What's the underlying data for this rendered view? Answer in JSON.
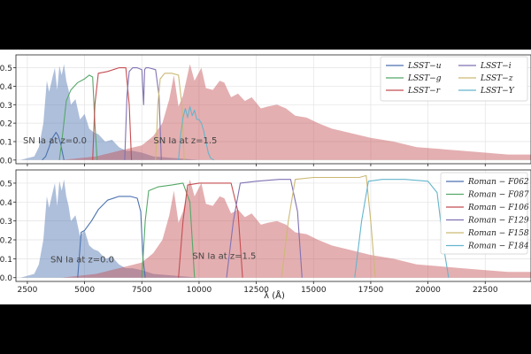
{
  "chart_data": [
    {
      "type": "area",
      "panel": "top",
      "xlim": [
        2000,
        24500
      ],
      "ylim": [
        -0.02,
        0.57
      ],
      "xticks": [
        2500,
        5000,
        7500,
        10000,
        12500,
        15000,
        17500,
        20000,
        22500
      ],
      "yticks": [
        0.0,
        0.1,
        0.2,
        0.3,
        0.4,
        0.5
      ],
      "ytick_labels": [
        "0.0",
        "0.1",
        "0.2",
        "0.3",
        "0.4",
        "0.5"
      ],
      "grid": true,
      "legend_position": "top-right",
      "legend_columns": 2,
      "sn_spectra": [
        {
          "name": "SN Ia at z=0.0",
          "color": "#4c72b0",
          "opacity": 0.45,
          "x": [
            2200,
            2800,
            3000,
            3200,
            3350,
            3450,
            3600,
            3700,
            3800,
            3900,
            4000,
            4100,
            4200,
            4300,
            4400,
            4600,
            4800,
            5000,
            5200,
            5400,
            5600,
            5900,
            6200,
            6500,
            6800,
            7100,
            7500,
            8000,
            9000,
            10000
          ],
          "y": [
            0.0,
            0.02,
            0.07,
            0.2,
            0.43,
            0.37,
            0.45,
            0.5,
            0.38,
            0.51,
            0.46,
            0.52,
            0.43,
            0.38,
            0.3,
            0.33,
            0.22,
            0.25,
            0.17,
            0.15,
            0.14,
            0.1,
            0.11,
            0.07,
            0.05,
            0.05,
            0.04,
            0.02,
            0.01,
            0.0
          ]
        },
        {
          "name": "SN Ia at z=1.5",
          "color": "#c44e52",
          "opacity": 0.45,
          "x": [
            4000,
            5500,
            6500,
            7500,
            8000,
            8400,
            8700,
            8900,
            9100,
            9300,
            9600,
            9800,
            10100,
            10300,
            10600,
            10900,
            11100,
            11400,
            11700,
            12000,
            12300,
            12700,
            13000,
            13400,
            13800,
            14200,
            14700,
            15200,
            15800,
            16500,
            17500,
            18500,
            19500,
            20500,
            21500,
            22500,
            23500,
            24500
          ],
          "y": [
            0.0,
            0.02,
            0.05,
            0.08,
            0.13,
            0.2,
            0.33,
            0.46,
            0.29,
            0.35,
            0.52,
            0.43,
            0.5,
            0.39,
            0.38,
            0.43,
            0.42,
            0.34,
            0.36,
            0.32,
            0.34,
            0.28,
            0.29,
            0.3,
            0.28,
            0.24,
            0.23,
            0.2,
            0.17,
            0.15,
            0.12,
            0.1,
            0.07,
            0.06,
            0.05,
            0.04,
            0.03,
            0.03
          ]
        }
      ],
      "annotations": [
        {
          "text": "SN Ia at z=0.0",
          "x": 3700,
          "y": 0.09
        },
        {
          "text": "SN Ia at z=1.5",
          "x": 9400,
          "y": 0.09
        }
      ],
      "series": [
        {
          "name": "LSST−u",
          "legend_label": "LSST−u",
          "color": "#4c72b0",
          "x": [
            3150,
            3300,
            3450,
            3550,
            3650,
            3750,
            3850,
            3950,
            4050,
            4100
          ],
          "y": [
            0.0,
            0.02,
            0.07,
            0.11,
            0.13,
            0.15,
            0.13,
            0.09,
            0.03,
            0.0
          ]
        },
        {
          "name": "LSST−g",
          "legend_label": "LSST−g",
          "color": "#55a868",
          "x": [
            3900,
            4050,
            4200,
            4400,
            4700,
            5000,
            5200,
            5350,
            5450,
            5550
          ],
          "y": [
            0.0,
            0.15,
            0.32,
            0.38,
            0.42,
            0.44,
            0.46,
            0.45,
            0.2,
            0.0
          ]
        },
        {
          "name": "LSST−r",
          "legend_label": "LSST−r",
          "color": "#c44e52",
          "x": [
            5350,
            5450,
            5600,
            6000,
            6500,
            6800,
            6950,
            7050
          ],
          "y": [
            0.0,
            0.3,
            0.47,
            0.48,
            0.5,
            0.5,
            0.3,
            0.0
          ]
        },
        {
          "name": "LSST−i",
          "legend_label": "LSST−i",
          "color": "#8172b2",
          "x": [
            6750,
            6850,
            6950,
            7100,
            7300,
            7500,
            7580,
            7620,
            7680,
            7800,
            8100,
            8250,
            8350
          ],
          "y": [
            0.0,
            0.35,
            0.48,
            0.5,
            0.5,
            0.49,
            0.3,
            0.49,
            0.5,
            0.5,
            0.49,
            0.35,
            0.0
          ]
        },
        {
          "name": "LSST−z",
          "legend_label": "LSST−z",
          "color": "#ccb974",
          "x": [
            8100,
            8200,
            8300,
            8500,
            8800,
            9100,
            9250,
            9350
          ],
          "y": [
            0.0,
            0.3,
            0.44,
            0.47,
            0.47,
            0.46,
            0.3,
            0.0
          ]
        },
        {
          "name": "LSST−Y",
          "legend_label": "LSST−Y",
          "color": "#64b5cd",
          "x": [
            9100,
            9200,
            9300,
            9400,
            9500,
            9600,
            9700,
            9800,
            9900,
            10000,
            10100,
            10200,
            10300,
            10400,
            10500,
            10650
          ],
          "y": [
            0.0,
            0.14,
            0.23,
            0.28,
            0.23,
            0.29,
            0.24,
            0.27,
            0.22,
            0.22,
            0.2,
            0.16,
            0.1,
            0.04,
            0.01,
            0.0
          ]
        }
      ]
    },
    {
      "type": "area",
      "panel": "bottom",
      "xlim": [
        2000,
        24500
      ],
      "ylim": [
        -0.02,
        0.57
      ],
      "xticks": [
        2500,
        5000,
        7500,
        10000,
        12500,
        15000,
        17500,
        20000,
        22500
      ],
      "xtick_labels": [
        "2500",
        "5000",
        "7500",
        "10000",
        "12500",
        "15000",
        "17500",
        "20000",
        "22500"
      ],
      "yticks": [
        0.0,
        0.1,
        0.2,
        0.3,
        0.4,
        0.5
      ],
      "ytick_labels": [
        "0.0",
        "0.1",
        "0.2",
        "0.3",
        "0.4",
        "0.5"
      ],
      "xlabel": "λ (Å)",
      "grid": true,
      "legend_position": "top-right",
      "legend_columns": 1,
      "sn_spectra": [
        {
          "name": "SN Ia at z=0.0",
          "color": "#4c72b0",
          "opacity": 0.45,
          "x": [
            2200,
            2800,
            3000,
            3200,
            3350,
            3450,
            3600,
            3700,
            3800,
            3900,
            4000,
            4100,
            4200,
            4300,
            4400,
            4600,
            4800,
            5000,
            5200,
            5400,
            5600,
            5900,
            6200,
            6500,
            6800,
            7100,
            7500,
            8000,
            9000,
            10000
          ],
          "y": [
            0.0,
            0.02,
            0.07,
            0.2,
            0.43,
            0.37,
            0.45,
            0.5,
            0.38,
            0.51,
            0.46,
            0.52,
            0.43,
            0.38,
            0.3,
            0.33,
            0.22,
            0.25,
            0.17,
            0.15,
            0.14,
            0.1,
            0.11,
            0.07,
            0.05,
            0.05,
            0.04,
            0.02,
            0.01,
            0.0
          ]
        },
        {
          "name": "SN Ia at z=1.5",
          "color": "#c44e52",
          "opacity": 0.45,
          "x": [
            4000,
            5500,
            6500,
            7500,
            8000,
            8400,
            8700,
            8900,
            9100,
            9300,
            9600,
            9800,
            10100,
            10300,
            10600,
            10900,
            11100,
            11400,
            11700,
            12000,
            12300,
            12700,
            13000,
            13400,
            13800,
            14200,
            14700,
            15200,
            15800,
            16500,
            17500,
            18500,
            19500,
            20500,
            21500,
            22500,
            23500,
            24500
          ],
          "y": [
            0.0,
            0.02,
            0.05,
            0.08,
            0.13,
            0.2,
            0.33,
            0.46,
            0.29,
            0.35,
            0.52,
            0.43,
            0.5,
            0.39,
            0.38,
            0.43,
            0.42,
            0.34,
            0.36,
            0.32,
            0.34,
            0.28,
            0.29,
            0.3,
            0.28,
            0.24,
            0.23,
            0.2,
            0.17,
            0.15,
            0.12,
            0.1,
            0.07,
            0.06,
            0.05,
            0.04,
            0.03,
            0.03
          ]
        }
      ],
      "annotations": [
        {
          "text": "SN Ia at z=0.0",
          "x": 4900,
          "y": 0.08
        },
        {
          "text": "SN Ia at z=1.5",
          "x": 11100,
          "y": 0.1
        }
      ],
      "series": [
        {
          "name": "Roman−F062",
          "legend_label": "Roman − F062",
          "color": "#4c72b0",
          "x": [
            4700,
            4850,
            5000,
            5300,
            5600,
            6000,
            6500,
            7000,
            7300,
            7450,
            7550,
            7650
          ],
          "y": [
            0.0,
            0.24,
            0.25,
            0.3,
            0.36,
            0.41,
            0.43,
            0.43,
            0.42,
            0.35,
            0.1,
            0.0
          ]
        },
        {
          "name": "Roman−F087",
          "legend_label": "Roman − F087",
          "color": "#55a868",
          "x": [
            7500,
            7650,
            7800,
            8200,
            8800,
            9300,
            9600,
            9800
          ],
          "y": [
            0.0,
            0.3,
            0.46,
            0.48,
            0.49,
            0.5,
            0.4,
            0.0
          ]
        },
        {
          "name": "Roman−F106",
          "legend_label": "Roman − F106",
          "color": "#c44e52",
          "x": [
            9100,
            9300,
            9500,
            10000,
            10800,
            11400,
            11700,
            11900
          ],
          "y": [
            0.0,
            0.3,
            0.49,
            0.5,
            0.5,
            0.5,
            0.35,
            0.0
          ]
        },
        {
          "name": "Roman−F129",
          "legend_label": "Roman − F129",
          "color": "#8172b2",
          "x": [
            11200,
            11500,
            11800,
            12500,
            13500,
            14000,
            14300,
            14500
          ],
          "y": [
            0.0,
            0.3,
            0.5,
            0.51,
            0.52,
            0.52,
            0.35,
            0.0
          ]
        },
        {
          "name": "Roman−F158",
          "legend_label": "Roman − F158",
          "color": "#ccb974",
          "x": [
            13600,
            13900,
            14200,
            15000,
            16000,
            17000,
            17300,
            17500,
            17700
          ],
          "y": [
            0.0,
            0.3,
            0.52,
            0.53,
            0.53,
            0.53,
            0.54,
            0.3,
            0.0
          ]
        },
        {
          "name": "Roman−F184",
          "legend_label": "Roman − F184",
          "color": "#64b5cd",
          "x": [
            16800,
            17100,
            17400,
            18000,
            19000,
            20000,
            20400,
            20700,
            20900
          ],
          "y": [
            0.0,
            0.3,
            0.51,
            0.52,
            0.52,
            0.51,
            0.45,
            0.15,
            0.0
          ]
        }
      ]
    }
  ]
}
